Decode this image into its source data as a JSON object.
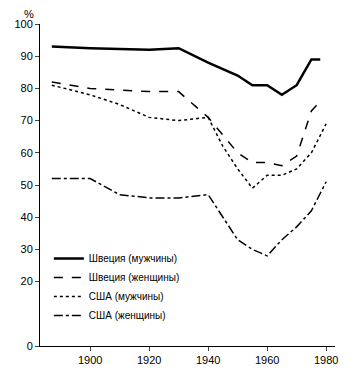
{
  "chart_data": {
    "type": "line",
    "y_label": "%",
    "xlim": [
      1883,
      1983
    ],
    "xticks": [
      1900,
      1920,
      1940,
      1960,
      1980
    ],
    "ylim": [
      0,
      100
    ],
    "yticks": [
      0,
      20,
      30,
      40,
      50,
      60,
      70,
      80,
      90,
      100
    ],
    "grid": false,
    "legend": "lower left",
    "series": [
      {
        "name": "Швеция (мужчины)",
        "color": "#000000",
        "line_style": "solid",
        "x": [
          1887,
          1900,
          1920,
          1930,
          1940,
          1950,
          1955,
          1960,
          1965,
          1970,
          1975,
          1978
        ],
        "values": [
          93,
          92.5,
          92,
          92.5,
          88,
          84,
          81,
          81,
          78,
          81,
          89,
          89
        ]
      },
      {
        "name": "Швеция (женщины)",
        "color": "#000000",
        "line_style": "dash",
        "x": [
          1887,
          1900,
          1920,
          1930,
          1940,
          1950,
          1955,
          1960,
          1965,
          1970,
          1975,
          1978
        ],
        "values": [
          82,
          80,
          79,
          79,
          71,
          60,
          57,
          57,
          56,
          59,
          73,
          76
        ]
      },
      {
        "name": "США (мужчины)",
        "color": "#000000",
        "line_style": "dot",
        "x": [
          1887,
          1900,
          1910,
          1920,
          1930,
          1940,
          1945,
          1950,
          1955,
          1960,
          1965,
          1970,
          1975,
          1980
        ],
        "values": [
          81,
          78,
          75,
          71,
          70,
          71,
          62,
          55,
          49,
          53,
          53,
          55,
          60,
          69
        ]
      },
      {
        "name": "США (женщины)",
        "color": "#000000",
        "line_style": "dashdot",
        "x": [
          1887,
          1900,
          1910,
          1920,
          1930,
          1940,
          1950,
          1955,
          1960,
          1965,
          1970,
          1975,
          1980
        ],
        "values": [
          52,
          52,
          47,
          46,
          46,
          47,
          33,
          30,
          28,
          33,
          37,
          42,
          51
        ]
      }
    ]
  }
}
